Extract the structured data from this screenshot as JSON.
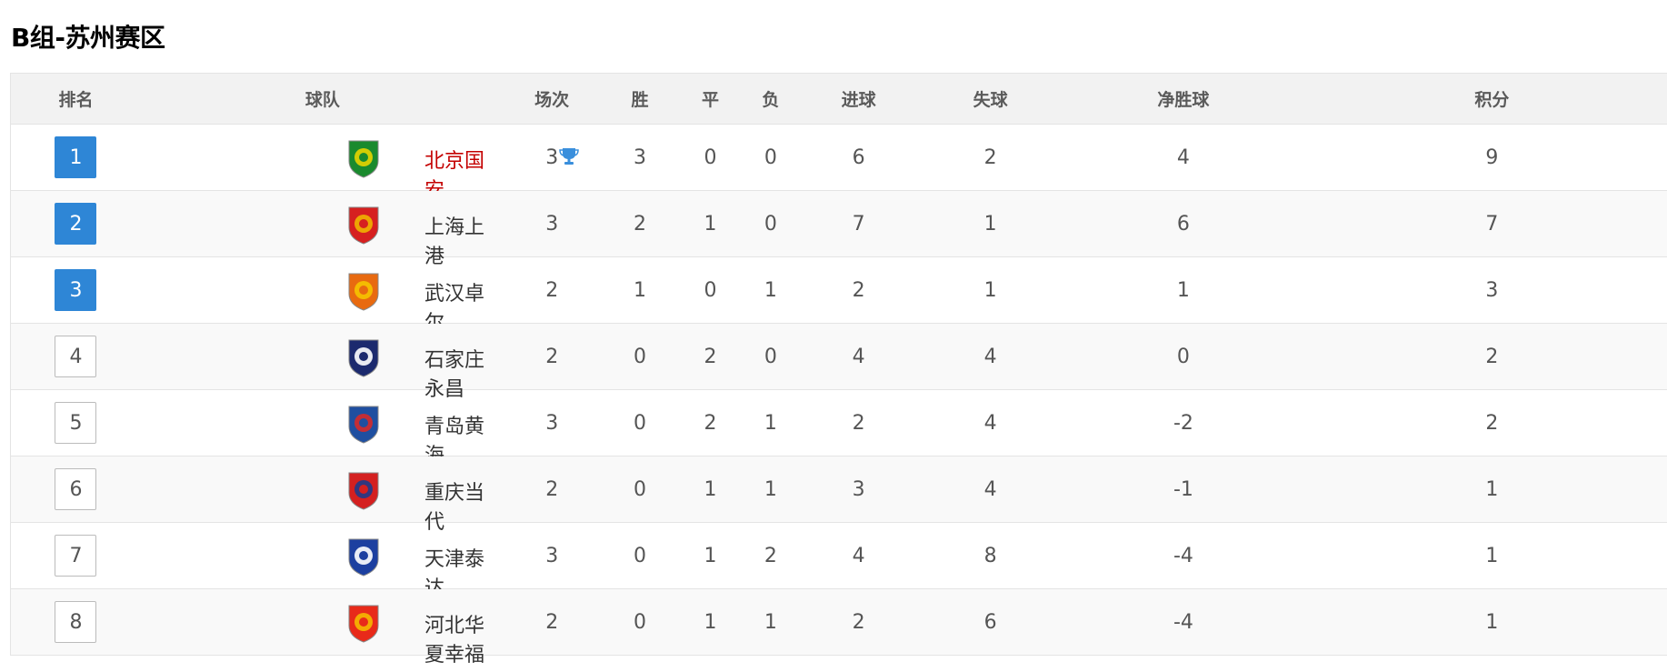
{
  "title": "B组-苏州赛区",
  "headers": [
    "排名",
    "球队",
    "场次",
    "胜",
    "平",
    "负",
    "进球",
    "失球",
    "净胜球",
    "积分"
  ],
  "colors": {
    "rank_highlight": "#2e86d6",
    "leader_name": "#c40000",
    "header_bg": "#f2f2f2"
  },
  "rows": [
    {
      "rank": "1",
      "team": "北京国安",
      "played": "3",
      "w": "3",
      "d": "0",
      "l": "0",
      "gf": "6",
      "ga": "2",
      "gd": "4",
      "pts": "9",
      "highlight": true,
      "leader": true,
      "logo": "beijing-guoan-logo",
      "logo_colors": [
        "#1a8a2e",
        "#e8d400"
      ]
    },
    {
      "rank": "2",
      "team": "上海上港",
      "played": "3",
      "w": "2",
      "d": "1",
      "l": "0",
      "gf": "7",
      "ga": "1",
      "gd": "6",
      "pts": "7",
      "highlight": true,
      "logo": "shanghai-sipg-logo",
      "logo_colors": [
        "#d62020",
        "#f0b400"
      ]
    },
    {
      "rank": "3",
      "team": "武汉卓尔",
      "played": "2",
      "w": "1",
      "d": "0",
      "l": "1",
      "gf": "2",
      "ga": "1",
      "gd": "1",
      "pts": "3",
      "highlight": true,
      "logo": "wuhan-zall-logo",
      "logo_colors": [
        "#e86a10",
        "#f5c400"
      ]
    },
    {
      "rank": "4",
      "team": "石家庄永昌",
      "played": "2",
      "w": "0",
      "d": "2",
      "l": "0",
      "gf": "4",
      "ga": "4",
      "gd": "0",
      "pts": "2",
      "logo": "shijiazhuang-yongchang-logo",
      "logo_colors": [
        "#1c2a6e",
        "#ffffff"
      ]
    },
    {
      "rank": "5",
      "team": "青岛黄海",
      "played": "3",
      "w": "0",
      "d": "2",
      "l": "1",
      "gf": "2",
      "ga": "4",
      "gd": "-2",
      "pts": "2",
      "logo": "qingdao-huanghai-logo",
      "logo_colors": [
        "#1f4fa0",
        "#d42a2a"
      ]
    },
    {
      "rank": "6",
      "team": "重庆当代",
      "played": "2",
      "w": "0",
      "d": "1",
      "l": "1",
      "gf": "3",
      "ga": "4",
      "gd": "-1",
      "pts": "1",
      "logo": "chongqing-dangdai-logo",
      "logo_colors": [
        "#d42020",
        "#1f3a8a"
      ]
    },
    {
      "rank": "7",
      "team": "天津泰达",
      "played": "3",
      "w": "0",
      "d": "1",
      "l": "2",
      "gf": "4",
      "ga": "8",
      "gd": "-4",
      "pts": "1",
      "logo": "tianjin-teda-logo",
      "logo_colors": [
        "#1c3fa0",
        "#ffffff"
      ]
    },
    {
      "rank": "8",
      "team": "河北华夏幸福",
      "played": "2",
      "w": "0",
      "d": "1",
      "l": "1",
      "gf": "2",
      "ga": "6",
      "gd": "-4",
      "pts": "1",
      "logo": "hebei-cffc-logo",
      "logo_colors": [
        "#e82a1a",
        "#f5b800"
      ]
    }
  ]
}
